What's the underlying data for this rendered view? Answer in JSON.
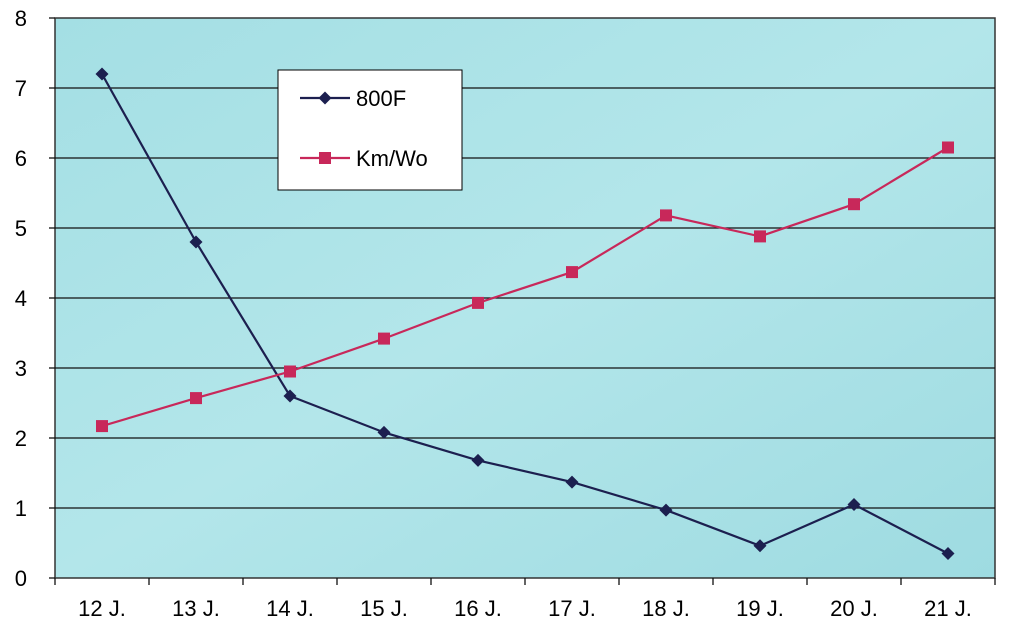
{
  "chart_data": {
    "type": "line",
    "title": "",
    "xlabel": "",
    "ylabel": "",
    "categories": [
      "12 J.",
      "13 J.",
      "14 J.",
      "15 J.",
      "16 J.",
      "17 J.",
      "18 J.",
      "19 J.",
      "20 J.",
      "21 J."
    ],
    "ylim": [
      0,
      8
    ],
    "yticks": [
      0,
      1,
      2,
      3,
      4,
      5,
      6,
      7,
      8
    ],
    "grid": true,
    "legend_position": "top-center",
    "plot_background": "#a8e0e4",
    "series": [
      {
        "name": "800F",
        "color": "#1c1f4f",
        "marker": "diamond",
        "values": [
          7.2,
          4.8,
          2.6,
          2.08,
          1.68,
          1.37,
          0.97,
          0.46,
          1.05,
          0.35
        ]
      },
      {
        "name": "Km/Wo",
        "color": "#c8285a",
        "marker": "square",
        "values": [
          2.17,
          2.57,
          2.95,
          3.42,
          3.93,
          4.37,
          5.18,
          4.88,
          5.34,
          6.15
        ]
      }
    ]
  }
}
